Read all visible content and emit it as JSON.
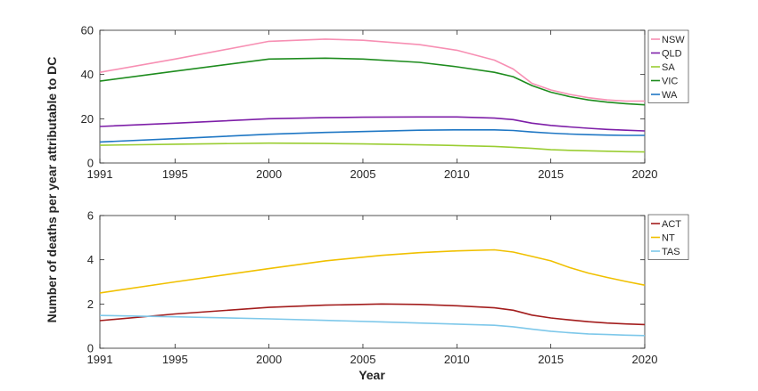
{
  "figure": {
    "ylabel": "Number of deaths per year attributable to DC",
    "xlabel": "Year"
  },
  "chart_data": [
    {
      "type": "line",
      "xlabel": "",
      "ylabel": "",
      "xlim": [
        1991,
        2020
      ],
      "ylim": [
        0,
        60
      ],
      "xticks": [
        1991,
        1995,
        2000,
        2005,
        2010,
        2015,
        2020
      ],
      "yticks": [
        0,
        20,
        40,
        60
      ],
      "grid": false,
      "legend_position": "top-right-outside",
      "x": [
        1991,
        1995,
        2000,
        2003,
        2005,
        2008,
        2010,
        2012,
        2013,
        2014,
        2015,
        2016,
        2017,
        2018,
        2019,
        2020
      ],
      "series": [
        {
          "name": "NSW",
          "color": "#f78fb3",
          "values": [
            41,
            47,
            55,
            56,
            55.5,
            53.5,
            51,
            46.5,
            42.5,
            36,
            33,
            31,
            29.5,
            28.5,
            28,
            28
          ]
        },
        {
          "name": "QLD",
          "color": "#7e1fa8",
          "values": [
            16.5,
            18,
            20,
            20.5,
            20.7,
            20.8,
            20.8,
            20.3,
            19.6,
            18,
            17,
            16.3,
            15.7,
            15.2,
            14.8,
            14.5
          ]
        },
        {
          "name": "SA",
          "color": "#9acd32",
          "values": [
            8,
            8.5,
            9,
            8.8,
            8.6,
            8.2,
            7.9,
            7.5,
            7.1,
            6.6,
            6,
            5.7,
            5.5,
            5.3,
            5.1,
            5
          ]
        },
        {
          "name": "VIC",
          "color": "#1e8c1e",
          "values": [
            37,
            41.5,
            47,
            47.4,
            47,
            45.5,
            43.5,
            41,
            39,
            35,
            32,
            30,
            28.5,
            27.5,
            26.8,
            26.3
          ]
        },
        {
          "name": "WA",
          "color": "#1f77c4",
          "values": [
            9.5,
            11,
            13,
            13.8,
            14.2,
            14.8,
            15,
            15,
            14.7,
            14,
            13.5,
            13.1,
            12.8,
            12.6,
            12.5,
            12.5
          ]
        }
      ]
    },
    {
      "type": "line",
      "xlabel": "Year",
      "ylabel": "",
      "xlim": [
        1991,
        2020
      ],
      "ylim": [
        0,
        6
      ],
      "xticks": [
        1991,
        1995,
        2000,
        2005,
        2010,
        2015,
        2020
      ],
      "yticks": [
        0,
        2,
        4,
        6
      ],
      "grid": false,
      "legend_position": "top-right-outside",
      "x": [
        1991,
        1995,
        2000,
        2003,
        2006,
        2008,
        2010,
        2012,
        2013,
        2014,
        2015,
        2016,
        2017,
        2018,
        2019,
        2020
      ],
      "series": [
        {
          "name": "ACT",
          "color": "#a31d1d",
          "values": [
            1.25,
            1.55,
            1.85,
            1.95,
            2.0,
            1.98,
            1.92,
            1.83,
            1.72,
            1.5,
            1.37,
            1.28,
            1.2,
            1.14,
            1.1,
            1.07
          ]
        },
        {
          "name": "NT",
          "color": "#f0c000",
          "values": [
            2.5,
            3.0,
            3.6,
            3.95,
            4.2,
            4.32,
            4.4,
            4.45,
            4.35,
            4.15,
            3.95,
            3.65,
            3.4,
            3.2,
            3.02,
            2.85
          ]
        },
        {
          "name": "TAS",
          "color": "#7ec8ea",
          "values": [
            1.48,
            1.42,
            1.33,
            1.26,
            1.19,
            1.14,
            1.09,
            1.04,
            0.97,
            0.86,
            0.77,
            0.7,
            0.65,
            0.62,
            0.59,
            0.57
          ]
        }
      ]
    }
  ]
}
